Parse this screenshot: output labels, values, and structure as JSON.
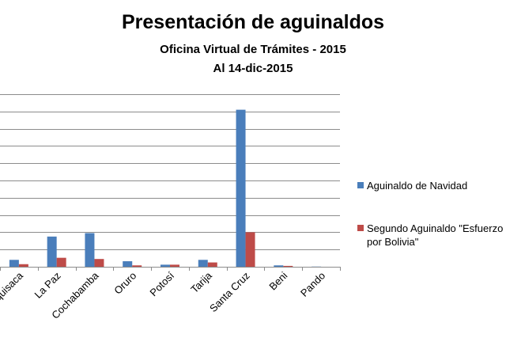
{
  "chart_data": {
    "type": "bar",
    "title": "Presentación de aguinaldos",
    "subtitle": [
      "Oficina Virtual de Trámites - 2015",
      "Al 14-dic-2015"
    ],
    "categories": [
      "Chuquisaca",
      "La Paz",
      "Cochabamba",
      "Oruro",
      "Potosí",
      "Tarija",
      "Santa Cruz",
      "Beni",
      "Pando"
    ],
    "series": [
      {
        "name": "Aguinaldo de Navidad",
        "color": "#4a7ebb",
        "values": [
          40,
          175,
          195,
          32,
          12,
          40,
          910,
          8,
          1
        ]
      },
      {
        "name": "Segundo Aguinaldo \"Esfuerzo por Bolivia\"",
        "color": "#be4b48",
        "values": [
          15,
          52,
          45,
          8,
          12,
          25,
          200,
          5,
          0
        ]
      }
    ],
    "ylim": [
      0,
      1000
    ],
    "grid": true,
    "legend_position": "right"
  },
  "legend": {
    "item1": "Aguinaldo de Navidad",
    "item2_line1": "Segundo Aguinaldo  \"Esfuerzo",
    "item2_line2": "por Bolivia\""
  }
}
